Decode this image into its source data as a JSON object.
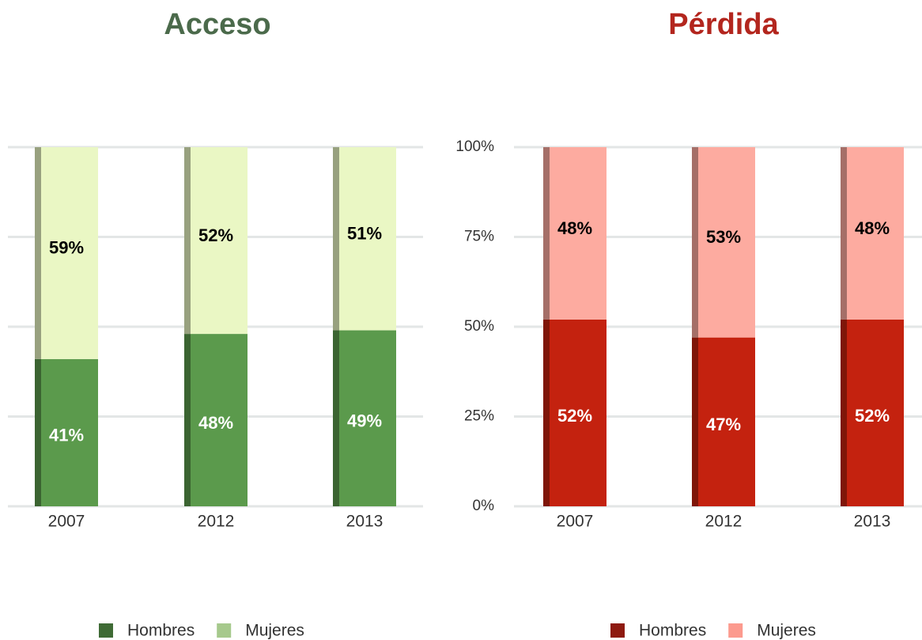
{
  "chart_data": [
    {
      "type": "stacked-bar",
      "title": "Acceso",
      "title_color": "#4b6a4b",
      "categories": [
        "2007",
        "2012",
        "2013"
      ],
      "series": [
        {
          "name": "Hombres",
          "color": "#5b9a4c",
          "legend_color": "#3f6b35",
          "values": [
            41,
            48,
            49
          ],
          "value_labels": [
            "41%",
            "48%",
            "49%"
          ],
          "label_color": "#ffffff"
        },
        {
          "name": "Mujeres",
          "color": "#eaf7c4",
          "legend_color": "#a6c98c",
          "values": [
            59,
            52,
            51
          ],
          "value_labels": [
            "59%",
            "52%",
            "51%"
          ],
          "label_color": "#000000"
        }
      ],
      "ylim": [
        0,
        100
      ],
      "yticks": [
        0,
        25,
        50,
        75,
        100
      ],
      "ytick_labels": false,
      "grid": true
    },
    {
      "type": "stacked-bar",
      "title": "Pérdida",
      "title_color": "#b3261e",
      "categories": [
        "2007",
        "2012",
        "2013"
      ],
      "series": [
        {
          "name": "Hombres",
          "color": "#c4220f",
          "legend_color": "#8e1a10",
          "values": [
            52,
            47,
            52
          ],
          "value_labels": [
            "52%",
            "47%",
            "52%"
          ],
          "label_color": "#ffffff"
        },
        {
          "name": "Mujeres",
          "color": "#fdaba0",
          "legend_color": "#fc9a8e",
          "values": [
            48,
            53,
            48
          ],
          "value_labels": [
            "48%",
            "53%",
            "48%"
          ],
          "label_color": "#000000"
        }
      ],
      "ylim": [
        0,
        100
      ],
      "yticks": [
        {
          "value": 0,
          "label": "0%"
        },
        {
          "value": 25,
          "label": "25%"
        },
        {
          "value": 50,
          "label": "50%"
        },
        {
          "value": 75,
          "label": "75%"
        },
        {
          "value": 100,
          "label": "100%"
        }
      ],
      "ytick_labels": true,
      "grid": true
    }
  ]
}
